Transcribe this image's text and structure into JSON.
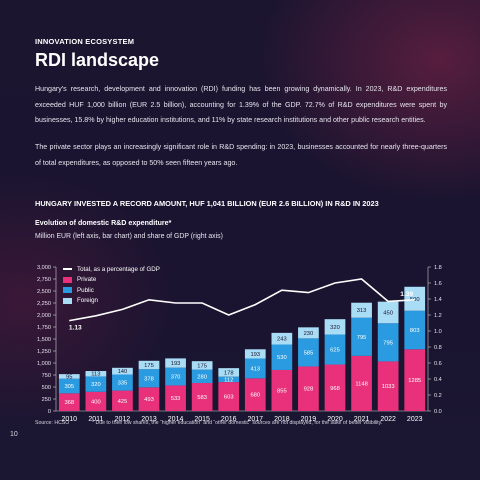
{
  "section_label": "INNOVATION ECOSYSTEM",
  "title": "RDI landscape",
  "paragraph1": "Hungary's research, development and innovation (RDI) funding has been growing dynamically. In 2023, R&D expenditures exceeded HUF 1,000 billion (EUR 2.5 billion), accounting for 1.39% of the GDP. 72.7% of R&D expenditures were spent by businesses, 15.8% by higher education institutions, and 11% by state research institutions and other public research entities.",
  "paragraph2": "The private sector plays an increasingly significant role in R&D spending: in 2023, businesses accounted for nearly three-quarters of total expenditures, as opposed to 50% seen fifteen years ago.",
  "chart_heading": "HUNGARY INVESTED A RECORD AMOUNT, HUF 1,041 BILLION (EUR 2.6 BILLION) IN R&D IN 2023",
  "chart_subtitle": "Evolution of domestic R&D expenditure*",
  "chart_subtitle2": "Million EUR (left axis, bar chart) and share of GDP (right axis)",
  "source": "Source: HCSO",
  "footnote": "* Due to their low shares, the “higher education” and “other domestic” sources are not displayed, for the sake of better visibility.",
  "page_number": "10",
  "colors": {
    "private": "#e8317a",
    "public": "#2a9be0",
    "foreign": "#a9dcf5",
    "line": "#ffffff"
  },
  "chart_data": {
    "type": "bar",
    "stacked": true,
    "categories": [
      "2010",
      "2011",
      "2012",
      "2013",
      "2014",
      "2015",
      "2016",
      "2017",
      "2018",
      "2019",
      "2020",
      "2021",
      "2022",
      "2023"
    ],
    "series": [
      {
        "name": "Private",
        "values": [
          368,
          400,
          425,
          493,
          533,
          583,
          603,
          680,
          855,
          928,
          968,
          1148,
          1033,
          1285
        ]
      },
      {
        "name": "Public",
        "values": [
          305,
          320,
          335,
          378,
          370,
          280,
          112,
          413,
          530,
          585,
          625,
          795,
          795,
          803
        ]
      },
      {
        "name": "Foreign",
        "values": [
          95,
          113,
          140,
          175,
          193,
          175,
          178,
          193,
          243,
          230,
          320,
          313,
          450,
          500
        ]
      }
    ],
    "line": {
      "name": "Total, as a percentage of GDP",
      "values": [
        1.13,
        1.19,
        1.27,
        1.39,
        1.35,
        1.35,
        1.2,
        1.33,
        1.51,
        1.48,
        1.6,
        1.65,
        1.37,
        1.39
      ],
      "labels": {
        "0": "1.13",
        "13": "1.39"
      }
    },
    "y_left": {
      "min": 0,
      "max": 3000,
      "ticks": [
        0,
        250,
        500,
        750,
        1000,
        1250,
        1500,
        1750,
        2000,
        2250,
        2500,
        2750,
        3000
      ],
      "tick_labels": [
        "0",
        "250",
        "500",
        "750",
        "1,000",
        "1,250",
        "1,500",
        "1,750",
        "2,000",
        "2,250",
        "2,500",
        "2,750",
        "3,000"
      ]
    },
    "y_right": {
      "min": 0,
      "max": 1.8,
      "ticks": [
        0.0,
        0.2,
        0.4,
        0.6,
        0.8,
        1.0,
        1.2,
        1.4,
        1.6,
        1.8
      ],
      "tick_labels": [
        "0.0",
        "0.2",
        "0.4",
        "0.6",
        "0.8",
        "1.0",
        "1.2",
        "1.4",
        "1.6",
        "1.8"
      ]
    },
    "legend_position": "top-left"
  }
}
